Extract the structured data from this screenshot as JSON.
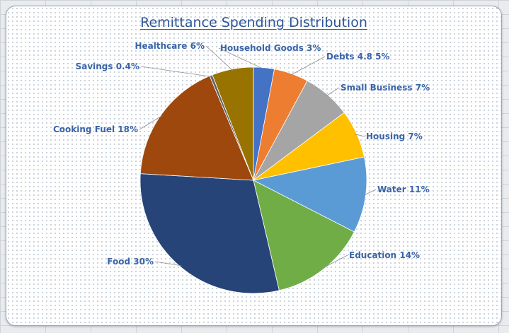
{
  "chart_data": {
    "type": "pie",
    "title": "Remittance Spending Distribution",
    "start_angle_deg": 0,
    "direction": "clockwise",
    "slices": [
      {
        "label": "Household Goods 3%",
        "value": 3,
        "color": "#4472c4"
      },
      {
        "label": "Debts 4.8 5%",
        "value": 5,
        "color": "#ed7d31"
      },
      {
        "label": "Small Business 7%",
        "value": 7,
        "color": "#a5a5a5"
      },
      {
        "label": "Housing 7%",
        "value": 7,
        "color": "#ffc000"
      },
      {
        "label": "Water 11%",
        "value": 11,
        "color": "#5b9bd5"
      },
      {
        "label": "Education 14%",
        "value": 14,
        "color": "#70ad47"
      },
      {
        "label": "Food 30%",
        "value": 30,
        "color": "#264478"
      },
      {
        "label": "Cooking Fuel 18%",
        "value": 18,
        "color": "#9e480e"
      },
      {
        "label": "Savings 0.4%",
        "value": 0.4,
        "color": "#636363"
      },
      {
        "label": "Healthcare  6%",
        "value": 6,
        "color": "#997300"
      }
    ]
  }
}
